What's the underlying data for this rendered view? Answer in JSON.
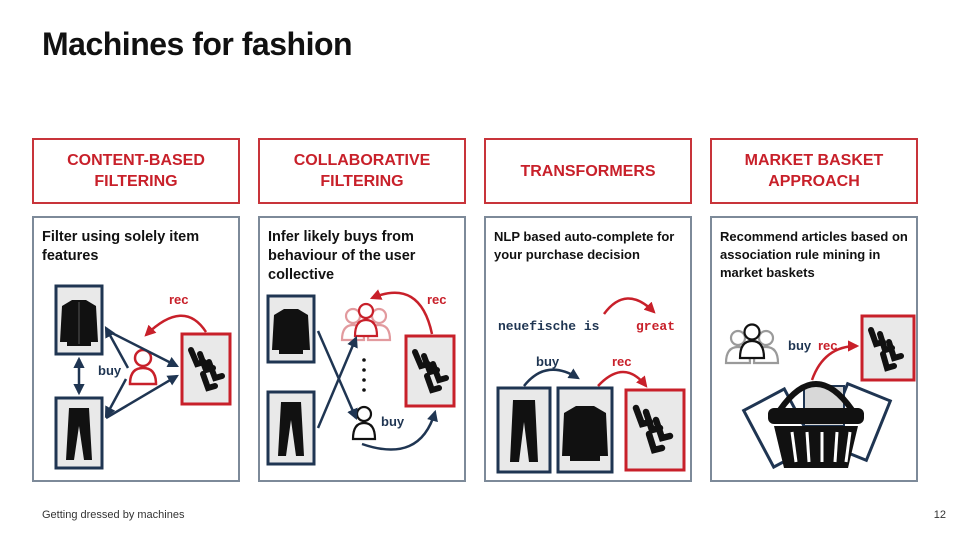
{
  "slide": {
    "title": "Machines for fashion",
    "footer": "Getting dressed by machines",
    "page_number": "12"
  },
  "colors": {
    "accent_red": "#c8202a",
    "navy": "#1f3552",
    "panel_border": "#7d8a99"
  },
  "columns": [
    {
      "heading": "CONTENT-BASED FILTERING",
      "heading_lines": [
        "CONTENT-BASED",
        "FILTERING"
      ],
      "description": "Filter using solely item features",
      "labels": {
        "rec": "rec",
        "buy": "buy"
      }
    },
    {
      "heading": "COLLABORATIVE FILTERING",
      "heading_lines": [
        "COLLABORATIVE",
        "FILTERING"
      ],
      "description": "Infer likely buys from behaviour of the user collective",
      "labels": {
        "rec": "rec",
        "buy": "buy"
      }
    },
    {
      "heading": "TRANSFORMERS",
      "heading_lines": [
        "TRANSFORMERS"
      ],
      "description": "NLP based auto-complete for your purchase decision",
      "sentence": "neuefische is",
      "completion": "great",
      "labels": {
        "rec": "rec",
        "buy": "buy"
      }
    },
    {
      "heading": "MARKET BASKET APPROACH",
      "heading_lines": [
        "MARKET BASKET",
        "APPROACH"
      ],
      "description": "Recommend articles based on association rule mining in market baskets",
      "labels": {
        "rec": "rec",
        "buy": "buy"
      }
    }
  ],
  "icons": [
    "jacket-icon",
    "trousers-icon",
    "socks-icon",
    "user-icon",
    "user-group-icon",
    "shopping-basket-icon"
  ]
}
